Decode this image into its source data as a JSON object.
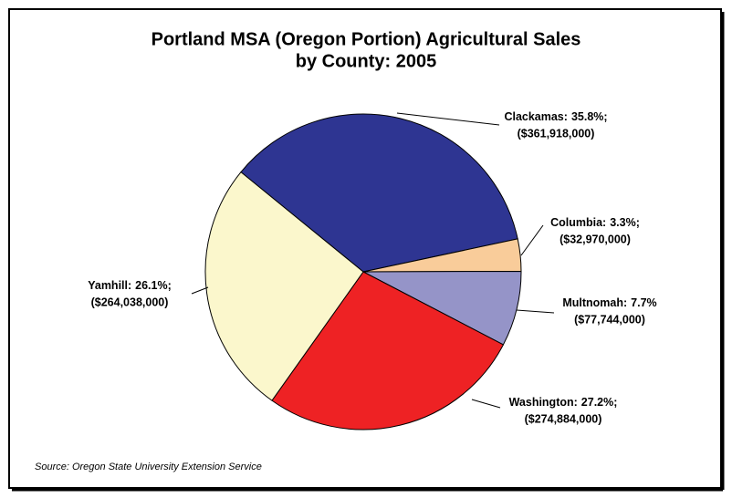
{
  "chart_data": {
    "type": "pie",
    "title": [
      "Portland MSA (Oregon Portion) Agricultural Sales",
      "by County: 2005"
    ],
    "categories": [
      "Clackamas:",
      "Columbia:",
      "Multnomah:",
      "Washington:",
      "Yamhill:"
    ],
    "values": [
      35.8,
      3.3,
      7.7,
      27.2,
      26.1
    ],
    "value_labels": [
      "35.8%;",
      "3.3%;",
      "7.7%",
      "27.2%;",
      "26.1%;"
    ],
    "sales": [
      361918000,
      32970000,
      77744000,
      274884000,
      264038000
    ],
    "sales_labels": [
      "($361,918,000)",
      "($32,970,000)",
      "($77,744,000)",
      "($274,884,000)",
      "($264,038,000)"
    ],
    "colors": [
      "#2e3592",
      "#f9cc9a",
      "#9594c8",
      "#ee2224",
      "#fbf7cc"
    ],
    "source": "Source: Oregon State University Extension Service"
  }
}
